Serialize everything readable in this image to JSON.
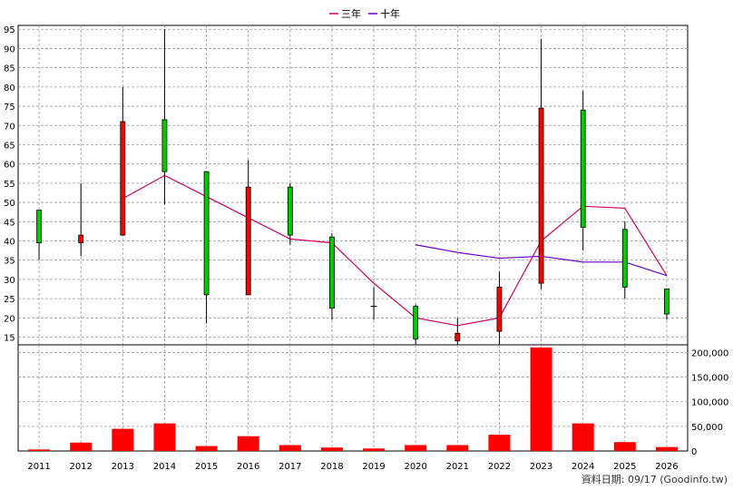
{
  "legend": [
    {
      "label": "三年",
      "color": "#cc0066"
    },
    {
      "label": "十年",
      "color": "#6600cc"
    }
  ],
  "footer": "資料日期: 09/17 (Goodinfo.tw)",
  "colors": {
    "up": "#00cc00",
    "down": "#ff0000",
    "volume": "#ff0000",
    "grid": "#999999"
  },
  "chart_data": [
    {
      "type": "candlestick",
      "title": "",
      "categories": [
        "2011",
        "2012",
        "2013",
        "2014",
        "2015",
        "2016",
        "2017",
        "2018",
        "2019",
        "2020",
        "2021",
        "2022",
        "2023",
        "2024",
        "2025",
        "2026"
      ],
      "y_ticks": [
        15,
        20,
        25,
        30,
        35,
        40,
        45,
        50,
        55,
        60,
        65,
        70,
        75,
        80,
        85,
        90,
        95
      ],
      "ylim": [
        13,
        96
      ],
      "grid": true,
      "legend_position": "top-center",
      "ohlc": [
        {
          "open": 39.5,
          "high": 48,
          "low": 35,
          "close": 48
        },
        {
          "open": 41.5,
          "high": 55,
          "low": 36,
          "close": 39.5
        },
        {
          "open": 71,
          "high": 80,
          "low": 41.5,
          "close": 41.5
        },
        {
          "open": 58,
          "high": 95,
          "low": 49.5,
          "close": 71.5
        },
        {
          "open": 26,
          "high": 58,
          "low": 18.5,
          "close": 58
        },
        {
          "open": 54,
          "high": 61,
          "low": 26,
          "close": 26
        },
        {
          "open": 41.5,
          "high": 55,
          "low": 39,
          "close": 54
        },
        {
          "open": 22.5,
          "high": 42,
          "low": 19.5,
          "close": 41
        },
        {
          "open": 23,
          "high": 28,
          "low": 19.5,
          "close": 23
        },
        {
          "open": 14.5,
          "high": 23.5,
          "low": 11,
          "close": 23
        },
        {
          "open": 16,
          "high": 20,
          "low": 11,
          "close": 14
        },
        {
          "open": 28,
          "high": 32,
          "low": 12,
          "close": 16.5
        },
        {
          "open": 74.5,
          "high": 92.5,
          "low": 27.5,
          "close": 29
        },
        {
          "open": 43.5,
          "high": 79,
          "low": 37.5,
          "close": 74
        },
        {
          "open": 28,
          "high": 45,
          "low": 25,
          "close": 43
        },
        {
          "open": 21,
          "high": 27.5,
          "low": 19.5,
          "close": 27.5
        }
      ],
      "series": [
        {
          "name": "三年",
          "color": "#cc0066",
          "values": [
            null,
            null,
            51,
            57,
            51.5,
            46,
            40.5,
            39.5,
            29,
            20,
            18,
            20,
            40,
            49,
            48.5,
            31
          ]
        },
        {
          "name": "十年",
          "color": "#6600cc",
          "values": [
            null,
            null,
            null,
            null,
            null,
            null,
            null,
            null,
            null,
            39,
            37,
            35.5,
            36,
            34.5,
            34.5,
            31
          ]
        }
      ]
    },
    {
      "type": "bar",
      "title": "",
      "categories": [
        "2011",
        "2012",
        "2013",
        "2014",
        "2015",
        "2016",
        "2017",
        "2018",
        "2019",
        "2020",
        "2021",
        "2022",
        "2023",
        "2024",
        "2025",
        "2026"
      ],
      "values": [
        3000,
        17000,
        45000,
        56000,
        10000,
        30000,
        12000,
        7000,
        5000,
        12000,
        12000,
        33000,
        210000,
        56000,
        18000,
        8000
      ],
      "y_ticks": [
        0,
        50000,
        100000,
        150000,
        200000
      ],
      "y_tick_labels": [
        "0",
        "50,000",
        "100,000",
        "150,000",
        "200,000"
      ],
      "ylim": [
        0,
        210000
      ],
      "grid": true
    }
  ]
}
